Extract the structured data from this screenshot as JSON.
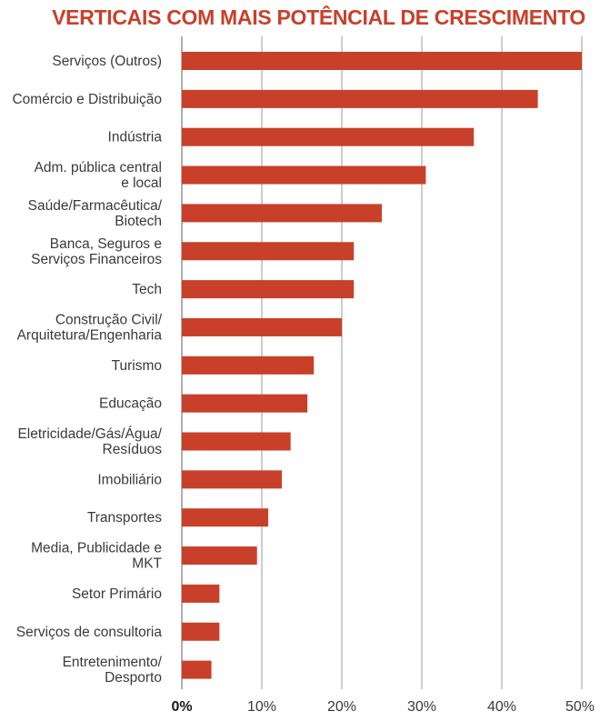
{
  "title": "VERTICAIS COM MAIS POTÊNCIAL DE CRESCIMENTO",
  "colors": {
    "bar": "#c8402a",
    "title": "#c8402a",
    "grid": "#9a9a9a",
    "text": "#3a3a3a"
  },
  "chart_data": {
    "type": "bar",
    "orientation": "horizontal",
    "title": "VERTICAIS COM MAIS POTÊNCIAL DE CRESCIMENTO",
    "xlabel": "",
    "ylabel": "",
    "xlim": [
      0,
      50
    ],
    "ticks": [
      0,
      10,
      20,
      30,
      40,
      50
    ],
    "tick_labels": [
      "0%",
      "10%",
      "20%",
      "30%",
      "40%",
      "50%"
    ],
    "grid": true,
    "legend": "none",
    "categories": [
      [
        "Serviços (Outros)"
      ],
      [
        "Comércio e Distribuição"
      ],
      [
        "Indústria"
      ],
      [
        "Adm. pública central",
        "e local"
      ],
      [
        "Saúde/Farmacêutica/",
        "Biotech"
      ],
      [
        "Banca, Seguros e",
        "Serviços Financeiros"
      ],
      [
        "Tech"
      ],
      [
        "Construção Civil/",
        "Arquitetura/Engenharia"
      ],
      [
        "Turismo"
      ],
      [
        "Educação"
      ],
      [
        "Eletricidade/Gás/Água/",
        "Resíduos"
      ],
      [
        "Imobiliário"
      ],
      [
        "Transportes"
      ],
      [
        "Media, Publicidade e",
        "MKT"
      ],
      [
        "Setor Primário"
      ],
      [
        "Serviços de consultoria"
      ],
      [
        "Entretenimento/",
        "Desporto"
      ]
    ],
    "values": [
      50,
      44.5,
      36.5,
      30.5,
      25,
      21.5,
      21.5,
      20,
      16.5,
      15.7,
      13.6,
      12.5,
      10.8,
      9.4,
      4.7,
      4.7,
      3.7
    ]
  }
}
